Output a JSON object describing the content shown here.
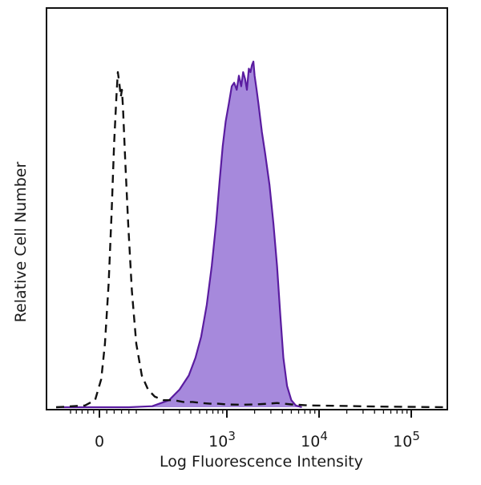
{
  "chart_data": {
    "type": "area",
    "xlabel": "Log Fluorescence Intensity",
    "ylabel": "Relative Cell Number",
    "x_scale": "biexponential",
    "x_ticks": [
      {
        "label": "0",
        "base": "0",
        "exp": ""
      },
      {
        "label": "10^3",
        "base": "10",
        "exp": "3"
      },
      {
        "label": "10^4",
        "base": "10",
        "exp": "4"
      },
      {
        "label": "10^5",
        "base": "10",
        "exp": "5"
      }
    ],
    "ylim": [
      0,
      100
    ],
    "y_ticks_labeled": false,
    "grid": false,
    "legend": "none",
    "colors": {
      "stained_fill": "#a689dc",
      "stained_line": "#5a1ca0",
      "control_line": "#111111"
    },
    "series": [
      {
        "style": "dashed",
        "points": [
          [
            -150,
            0
          ],
          [
            -50,
            0.5
          ],
          [
            -15,
            2
          ],
          [
            5,
            8
          ],
          [
            15,
            18
          ],
          [
            25,
            35
          ],
          [
            33,
            55
          ],
          [
            40,
            75
          ],
          [
            46,
            88
          ],
          [
            50,
            95
          ],
          [
            54,
            92
          ],
          [
            58,
            88
          ],
          [
            61,
            90
          ],
          [
            64,
            85
          ],
          [
            70,
            70
          ],
          [
            78,
            52
          ],
          [
            88,
            33
          ],
          [
            100,
            18
          ],
          [
            115,
            9
          ],
          [
            135,
            5
          ],
          [
            160,
            3
          ],
          [
            200,
            2
          ],
          [
            260,
            2
          ],
          [
            330,
            1.5
          ],
          [
            420,
            1.5
          ],
          [
            520,
            1.2
          ],
          [
            650,
            1
          ],
          [
            800,
            1
          ],
          [
            1000,
            0.8
          ],
          [
            1400,
            0.7
          ],
          [
            2000,
            0.8
          ],
          [
            2800,
            1
          ],
          [
            3500,
            1.2
          ],
          [
            5000,
            0.8
          ],
          [
            8000,
            0.5
          ],
          [
            15000,
            0.4
          ],
          [
            40000,
            0.2
          ],
          [
            200000,
            0
          ]
        ]
      },
      {
        "style": "filled",
        "points": [
          [
            -150,
            0
          ],
          [
            80,
            0
          ],
          [
            150,
            0.3
          ],
          [
            230,
            2
          ],
          [
            300,
            5
          ],
          [
            380,
            9
          ],
          [
            450,
            14
          ],
          [
            520,
            20
          ],
          [
            600,
            29
          ],
          [
            680,
            40
          ],
          [
            760,
            52
          ],
          [
            830,
            64
          ],
          [
            900,
            74
          ],
          [
            970,
            81
          ],
          [
            1050,
            86
          ],
          [
            1130,
            91
          ],
          [
            1200,
            92
          ],
          [
            1280,
            90
          ],
          [
            1350,
            94
          ],
          [
            1430,
            91
          ],
          [
            1500,
            95
          ],
          [
            1580,
            93
          ],
          [
            1650,
            90
          ],
          [
            1730,
            96
          ],
          [
            1800,
            95
          ],
          [
            1870,
            97
          ],
          [
            1940,
            98
          ],
          [
            2000,
            94
          ],
          [
            2100,
            90
          ],
          [
            2200,
            86
          ],
          [
            2400,
            78
          ],
          [
            2600,
            72
          ],
          [
            2900,
            63
          ],
          [
            3200,
            52
          ],
          [
            3500,
            40
          ],
          [
            3800,
            26
          ],
          [
            4100,
            14
          ],
          [
            4500,
            6
          ],
          [
            5000,
            2
          ],
          [
            5600,
            0.5
          ],
          [
            6500,
            0
          ]
        ]
      }
    ]
  }
}
